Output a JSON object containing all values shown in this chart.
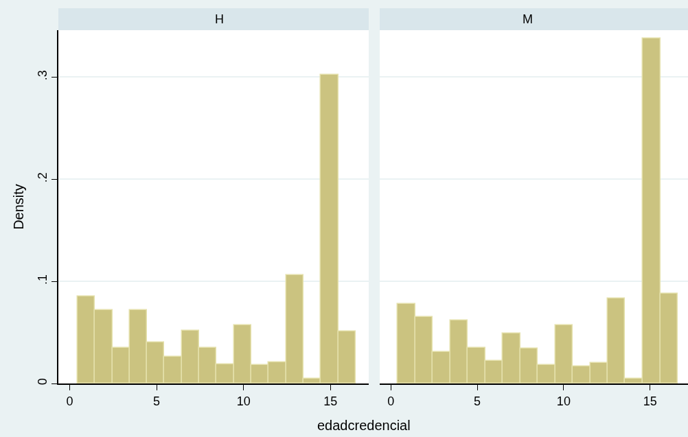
{
  "chart_data": [
    {
      "type": "histogram",
      "title": "H",
      "ylabel": "Density",
      "xlabel": "edadcredencial",
      "color": "#cbc380",
      "bins": [
        0.45,
        1.45,
        2.45,
        3.45,
        4.45,
        5.45,
        6.45,
        7.45,
        8.45,
        9.45,
        10.45,
        11.45,
        12.45,
        13.45,
        14.45,
        15.45,
        16.45
      ],
      "values": [
        0.085,
        0.072,
        0.035,
        0.072,
        0.04,
        0.026,
        0.052,
        0.035,
        0.019,
        0.057,
        0.018,
        0.021,
        0.106,
        0.005,
        0.302,
        0.051
      ],
      "xlim": [
        -0.65,
        17.2
      ],
      "xticks": [
        0,
        5,
        10,
        15
      ],
      "ylim": [
        0,
        0.346
      ],
      "yticks": [
        0,
        {
          "value": 0.1,
          "label": ".1"
        },
        {
          "value": 0.2,
          "label": ".2"
        },
        {
          "value": 0.3,
          "label": ".3"
        }
      ],
      "grid": "y"
    },
    {
      "type": "histogram",
      "title": "M",
      "color": "#cbc380",
      "bins": [
        0.4,
        1.41,
        2.43,
        3.44,
        4.45,
        5.46,
        6.48,
        7.49,
        8.5,
        9.51,
        10.53,
        11.54,
        12.55,
        13.56,
        14.58,
        15.59,
        16.6
      ],
      "values": [
        0.078,
        0.065,
        0.031,
        0.062,
        0.035,
        0.022,
        0.049,
        0.034,
        0.018,
        0.057,
        0.017,
        0.02,
        0.083,
        0.005,
        0.338,
        0.088
      ],
      "xlim": [
        -0.65,
        17.2
      ],
      "xticks": [
        0,
        5,
        10,
        15
      ],
      "ylim": [
        0,
        0.346
      ],
      "yticks": [
        {
          "value": 0,
          "label": null
        },
        {
          "value": 0.1,
          "label": null
        },
        {
          "value": 0.2,
          "label": null
        },
        {
          "value": 0.3,
          "label": null
        }
      ],
      "grid": "y",
      "tick_labels": "x"
    }
  ]
}
